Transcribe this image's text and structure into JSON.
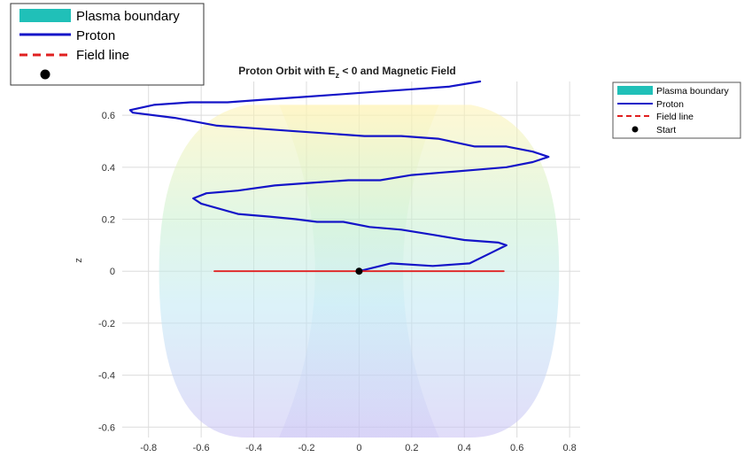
{
  "chart_data": {
    "type": "line",
    "title": "Proton Orbit with E",
    "title_subscript": "z",
    "title_rest": " < 0 and Magnetic Field",
    "xlabel": "",
    "ylabel": "z",
    "xlim": [
      -0.9,
      0.84
    ],
    "ylim": [
      -0.64,
      0.73
    ],
    "grid": true,
    "xticks": [
      -0.8,
      -0.6,
      -0.4,
      -0.2,
      0,
      0.2,
      0.4,
      0.6,
      0.8
    ],
    "xtick_labels": [
      "-0.8",
      "-0.6",
      "-0.4",
      "-0.2",
      "0",
      "0.2",
      "0.4",
      "0.6",
      "0.8"
    ],
    "yticks": [
      -0.6,
      -0.4,
      -0.2,
      0,
      0.2,
      0.4,
      0.6
    ],
    "ytick_labels": [
      "-0.6",
      "-0.4",
      "-0.2",
      "0",
      "0.2",
      "0.4",
      "0.6"
    ],
    "plasma_boundary": {
      "name": "Plasma boundary",
      "color": "#20c0b8",
      "x_range": [
        -0.76,
        0.76
      ],
      "z_range": [
        -0.64,
        0.64
      ]
    },
    "series": [
      {
        "name": "Proton",
        "color": "#1414c8",
        "x": [
          0,
          0.12,
          0.28,
          0.42,
          0.5,
          0.56,
          0.53,
          0.4,
          0.28,
          0.16,
          0.04,
          -0.06,
          -0.16,
          -0.24,
          -0.34,
          -0.46,
          -0.6,
          -0.63,
          -0.58,
          -0.46,
          -0.32,
          -0.18,
          -0.04,
          0.08,
          0.2,
          0.32,
          0.44,
          0.56,
          0.66,
          0.72,
          0.66,
          0.56,
          0.44,
          0.3,
          0.16,
          0.02,
          -0.12,
          -0.26,
          -0.4,
          -0.54,
          -0.7,
          -0.86,
          -0.87,
          -0.78,
          -0.64,
          -0.5,
          -0.36,
          -0.22,
          -0.08,
          0.06,
          0.2,
          0.34,
          0.46
        ],
        "y": [
          0,
          0.03,
          0.02,
          0.03,
          0.07,
          0.1,
          0.11,
          0.12,
          0.14,
          0.16,
          0.17,
          0.19,
          0.19,
          0.2,
          0.21,
          0.22,
          0.26,
          0.28,
          0.3,
          0.31,
          0.33,
          0.34,
          0.35,
          0.35,
          0.37,
          0.38,
          0.39,
          0.4,
          0.42,
          0.44,
          0.46,
          0.48,
          0.48,
          0.51,
          0.52,
          0.52,
          0.53,
          0.54,
          0.55,
          0.56,
          0.59,
          0.61,
          0.62,
          0.64,
          0.65,
          0.65,
          0.66,
          0.67,
          0.68,
          0.69,
          0.7,
          0.71,
          0.73
        ]
      },
      {
        "name": "Field line",
        "color": "#e02020",
        "x": [
          -0.55,
          0.55
        ],
        "y": [
          0,
          0
        ]
      }
    ],
    "start_point": {
      "name": "Start",
      "x": 0,
      "y": 0,
      "color": "#000000"
    }
  },
  "legend_main": {
    "items": [
      "Plasma boundary",
      "Proton",
      "Field line",
      ""
    ]
  },
  "legend_side": {
    "items": [
      "Plasma boundary",
      "Proton",
      "Field line",
      "Start"
    ]
  }
}
